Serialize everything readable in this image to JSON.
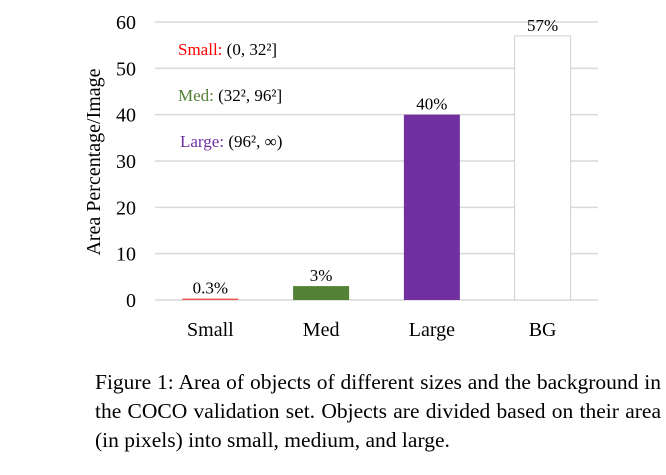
{
  "chart_data": {
    "type": "bar",
    "categories": [
      "Small",
      "Med",
      "Large",
      "BG"
    ],
    "values": [
      0.3,
      3,
      40,
      57
    ],
    "data_labels": [
      "0.3%",
      "3%",
      "40%",
      "57%"
    ],
    "colors": [
      "#e8524f",
      "#538135",
      "#7030a0",
      "#ffffff"
    ],
    "title": "",
    "xlabel": "",
    "ylabel": "Area Percentage/Image",
    "ylim": [
      0,
      60
    ],
    "yticks": [
      "0",
      "10",
      "20",
      "30",
      "40",
      "50",
      "60"
    ],
    "grid": true,
    "legend": [
      {
        "name": "Small:",
        "range": "(0, 32²]",
        "color": "#ff0000"
      },
      {
        "name": "Med:",
        "range": "(32², 96²]",
        "color": "#538135"
      },
      {
        "name": "Large:",
        "range": "(96², ∞)",
        "color": "#7030a0"
      }
    ]
  },
  "caption": "Figure 1:  Area of objects of different sizes and the background in the COCO validation set.  Objects are divided based on their area (in pixels) into small, medium, and large."
}
